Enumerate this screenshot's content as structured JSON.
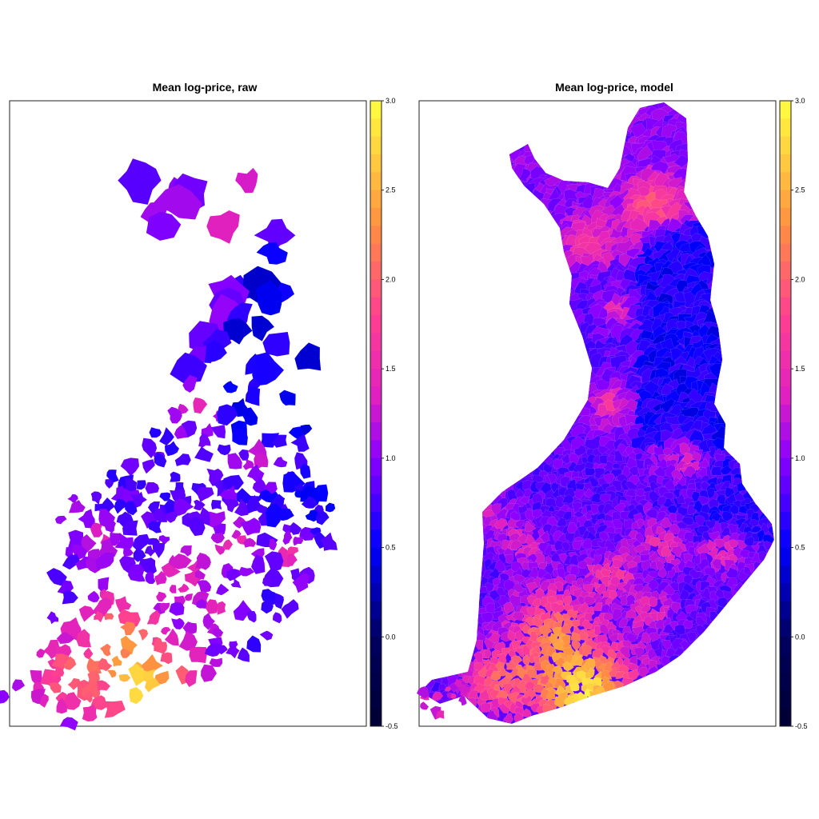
{
  "panels": [
    {
      "title": "Mean log-price, raw",
      "variant": "raw",
      "colorbar": {
        "min": -0.5,
        "max": 3.0,
        "ticks": [
          "3.0",
          "2.5",
          "2.0",
          "1.5",
          "1.0",
          "0.5",
          "0.0",
          "-0.5"
        ]
      }
    },
    {
      "title": "Mean log-price, model",
      "variant": "model",
      "colorbar": {
        "min": -0.5,
        "max": 3.0,
        "ticks": [
          "3.0",
          "2.5",
          "2.0",
          "1.5",
          "1.0",
          "0.5",
          "0.0",
          "-0.5"
        ]
      }
    }
  ],
  "palette": {
    "low": "#000033",
    "blue": "#0000FF",
    "purple": "#8A00FF",
    "magenta": "#E020C0",
    "pink": "#FF4090",
    "orange": "#FF9040",
    "high": "#FFFF40"
  }
}
